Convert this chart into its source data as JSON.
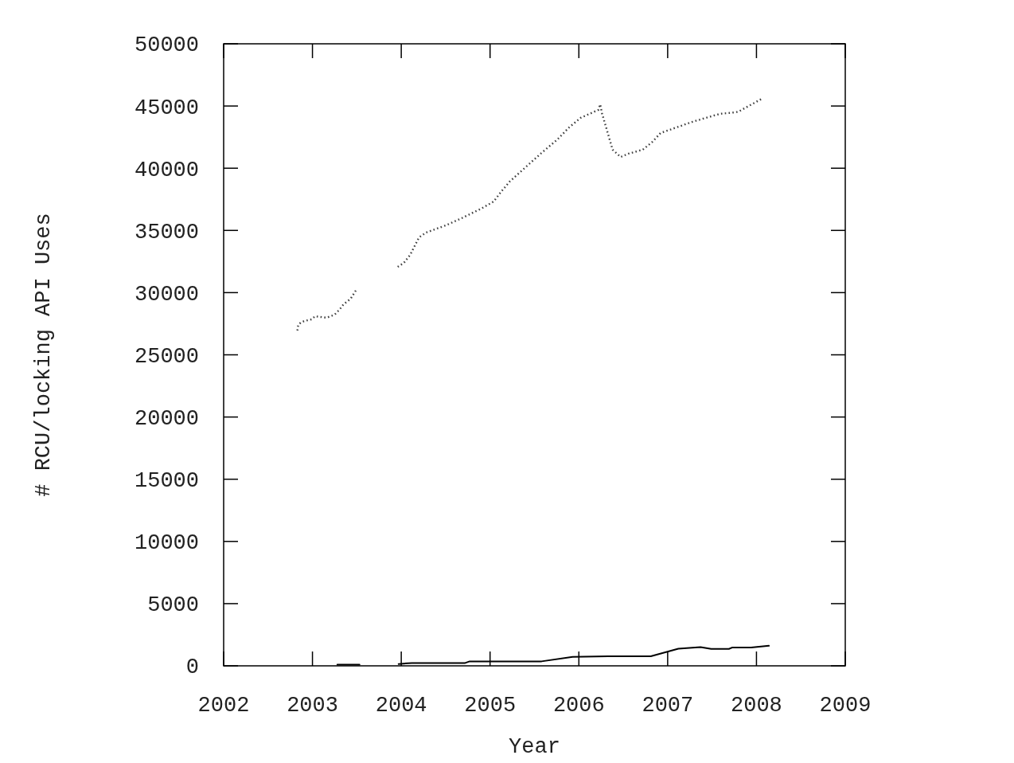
{
  "chart_data": {
    "type": "line",
    "xlabel": "Year",
    "ylabel": "# RCU/locking API Uses",
    "xlim": [
      2002,
      2009
    ],
    "xticks": [
      2002,
      2003,
      2004,
      2005,
      2006,
      2007,
      2008,
      2009
    ],
    "ylim": [
      0,
      50000
    ],
    "yticks": [
      0,
      5000,
      10000,
      15000,
      20000,
      25000,
      30000,
      35000,
      40000,
      45000,
      50000
    ],
    "marker": "none",
    "series": [
      {
        "color": "#404040",
        "line_style": "dotted",
        "x": [
          2002.83,
          2002.84,
          2002.87,
          2002.91,
          2002.99,
          2003.03,
          2003.16,
          2003.25,
          2003.31,
          2003.35,
          2003.43,
          2003.5,
          2003.7,
          2003.96,
          2004.03,
          2004.1,
          2004.2,
          2004.28,
          2004.5,
          2004.68,
          2004.9,
          2005.04,
          2005.13,
          2005.22,
          2005.4,
          2005.58,
          2005.76,
          2005.89,
          2006.02,
          2006.22,
          2006.24,
          2006.26,
          2006.32,
          2006.38,
          2006.47,
          2006.56,
          2006.72,
          2006.83,
          2006.92,
          2007.1,
          2007.28,
          2007.46,
          2007.59,
          2007.77,
          2007.8,
          2008.06
        ],
        "values": [
          26950,
          27400,
          27600,
          27720,
          27850,
          28100,
          27980,
          28230,
          28680,
          29060,
          29510,
          30300,
          null,
          32070,
          32390,
          33030,
          34440,
          34830,
          35400,
          35980,
          36750,
          37320,
          38150,
          38920,
          40080,
          41230,
          42320,
          43280,
          44050,
          44690,
          45130,
          44430,
          42960,
          41490,
          40900,
          41170,
          41490,
          42130,
          42830,
          43280,
          43730,
          44110,
          44370,
          44500,
          44560,
          45580
        ]
      },
      {
        "color": "#000000",
        "line_style": "solid",
        "x": [
          2003.28,
          2003.53,
          2003.7,
          2003.97,
          2004.12,
          2004.72,
          2004.77,
          2005.58,
          2005.93,
          2006.38,
          2006.81,
          2007.12,
          2007.37,
          2007.49,
          2007.69,
          2007.73,
          2007.94,
          2008.14
        ],
        "values": [
          100,
          100,
          null,
          150,
          230,
          230,
          360,
          360,
          720,
          770,
          770,
          1380,
          1510,
          1360,
          1360,
          1480,
          1480,
          1610
        ]
      }
    ]
  }
}
